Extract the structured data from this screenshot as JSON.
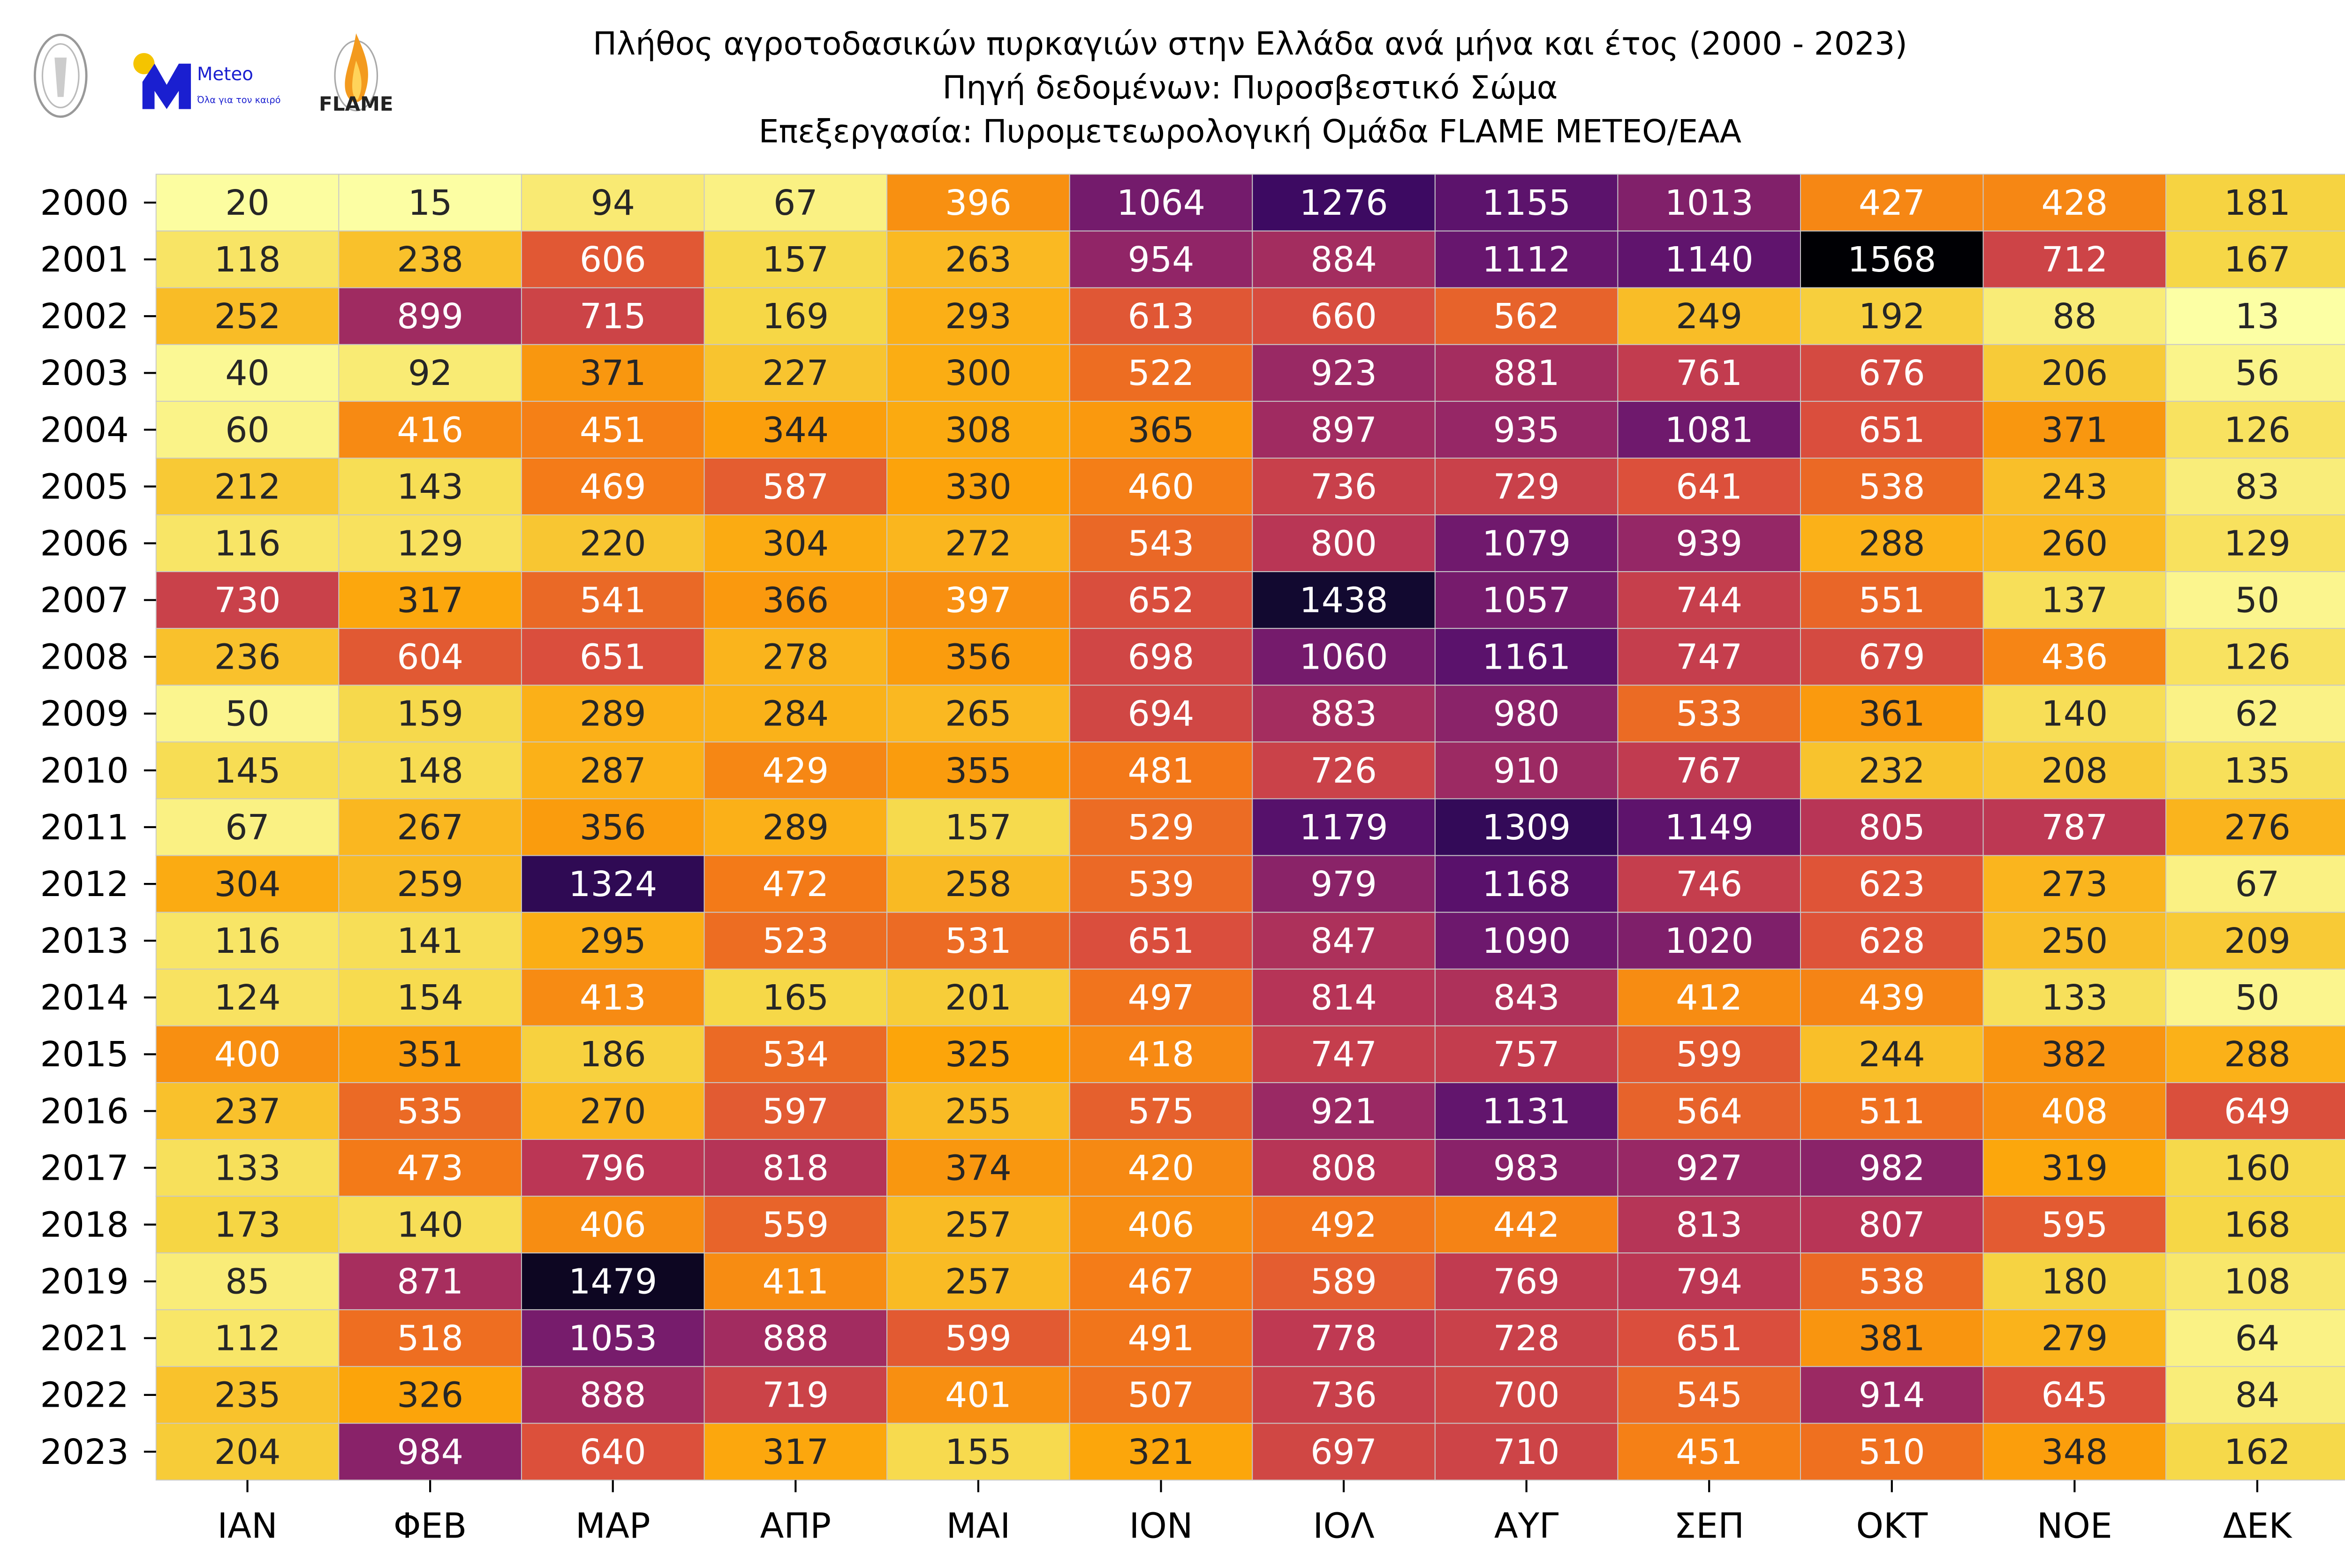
{
  "logos": {
    "observatory": "National Observatory of Athens seal",
    "meteo_name": "Meteo",
    "meteo_tagline": "Όλα για τον καιρό",
    "flame": "FLAME",
    "meteo_blue": "#1a1fd0",
    "meteo_yellow": "#f5c400"
  },
  "header": {
    "title": "Πλήθος αγροτοδασικών πυρκαγιών στην Ελλάδα ανά μήνα και έτος (2000 - 2023)",
    "source": "Πηγή δεδομένων: Πυροσβεστικό Σώμα",
    "processing": "Επεξεργασία: Πυρομετεωρολογική Ομάδα FLAME METEO/ΕΑΑ"
  },
  "chart_data": {
    "type": "heatmap",
    "title": "Πλήθος αγροτοδασικών πυρκαγιών στην Ελλάδα ανά μήνα και έτος (2000 - 2023)",
    "colormap": "inferno_r",
    "color_range": [
      13,
      1568
    ],
    "annotated": true,
    "columns": [
      "ΙΑΝ",
      "ΦΕΒ",
      "ΜΑΡ",
      "ΑΠΡ",
      "ΜΑΙ",
      "ΙΟΝ",
      "ΙΟΛ",
      "ΑΥΓ",
      "ΣΕΠ",
      "ΟΚΤ",
      "ΝΟΕ",
      "ΔΕΚ"
    ],
    "rows": [
      "2000",
      "2001",
      "2002",
      "2003",
      "2004",
      "2005",
      "2006",
      "2007",
      "2008",
      "2009",
      "2010",
      "2011",
      "2012",
      "2013",
      "2014",
      "2015",
      "2016",
      "2017",
      "2018",
      "2019",
      "2021",
      "2022",
      "2023"
    ],
    "values": [
      [
        20,
        15,
        94,
        67,
        396,
        1064,
        1276,
        1155,
        1013,
        427,
        428,
        181
      ],
      [
        118,
        238,
        606,
        157,
        263,
        954,
        884,
        1112,
        1140,
        1568,
        712,
        167
      ],
      [
        252,
        899,
        715,
        169,
        293,
        613,
        660,
        562,
        249,
        192,
        88,
        13
      ],
      [
        40,
        92,
        371,
        227,
        300,
        522,
        923,
        881,
        761,
        676,
        206,
        56
      ],
      [
        60,
        416,
        451,
        344,
        308,
        365,
        897,
        935,
        1081,
        651,
        371,
        126
      ],
      [
        212,
        143,
        469,
        587,
        330,
        460,
        736,
        729,
        641,
        538,
        243,
        83
      ],
      [
        116,
        129,
        220,
        304,
        272,
        543,
        800,
        1079,
        939,
        288,
        260,
        129
      ],
      [
        730,
        317,
        541,
        366,
        397,
        652,
        1438,
        1057,
        744,
        551,
        137,
        50
      ],
      [
        236,
        604,
        651,
        278,
        356,
        698,
        1060,
        1161,
        747,
        679,
        436,
        126
      ],
      [
        50,
        159,
        289,
        284,
        265,
        694,
        883,
        980,
        533,
        361,
        140,
        62
      ],
      [
        145,
        148,
        287,
        429,
        355,
        481,
        726,
        910,
        767,
        232,
        208,
        135
      ],
      [
        67,
        267,
        356,
        289,
        157,
        529,
        1179,
        1309,
        1149,
        805,
        787,
        276
      ],
      [
        304,
        259,
        1324,
        472,
        258,
        539,
        979,
        1168,
        746,
        623,
        273,
        67
      ],
      [
        116,
        141,
        295,
        523,
        531,
        651,
        847,
        1090,
        1020,
        628,
        250,
        209
      ],
      [
        124,
        154,
        413,
        165,
        201,
        497,
        814,
        843,
        412,
        439,
        133,
        50
      ],
      [
        400,
        351,
        186,
        534,
        325,
        418,
        747,
        757,
        599,
        244,
        382,
        288
      ],
      [
        237,
        535,
        270,
        597,
        255,
        575,
        921,
        1131,
        564,
        511,
        408,
        649
      ],
      [
        133,
        473,
        796,
        818,
        374,
        420,
        808,
        983,
        927,
        982,
        319,
        160
      ],
      [
        173,
        140,
        406,
        559,
        257,
        406,
        492,
        442,
        813,
        807,
        595,
        168
      ],
      [
        85,
        871,
        1479,
        411,
        257,
        467,
        589,
        769,
        794,
        538,
        180,
        108
      ],
      [
        112,
        518,
        1053,
        888,
        599,
        491,
        778,
        728,
        651,
        381,
        279,
        64
      ],
      [
        235,
        326,
        888,
        719,
        401,
        507,
        736,
        700,
        545,
        914,
        645,
        84
      ],
      [
        204,
        984,
        640,
        317,
        155,
        321,
        697,
        710,
        451,
        510,
        348,
        162
      ]
    ]
  }
}
